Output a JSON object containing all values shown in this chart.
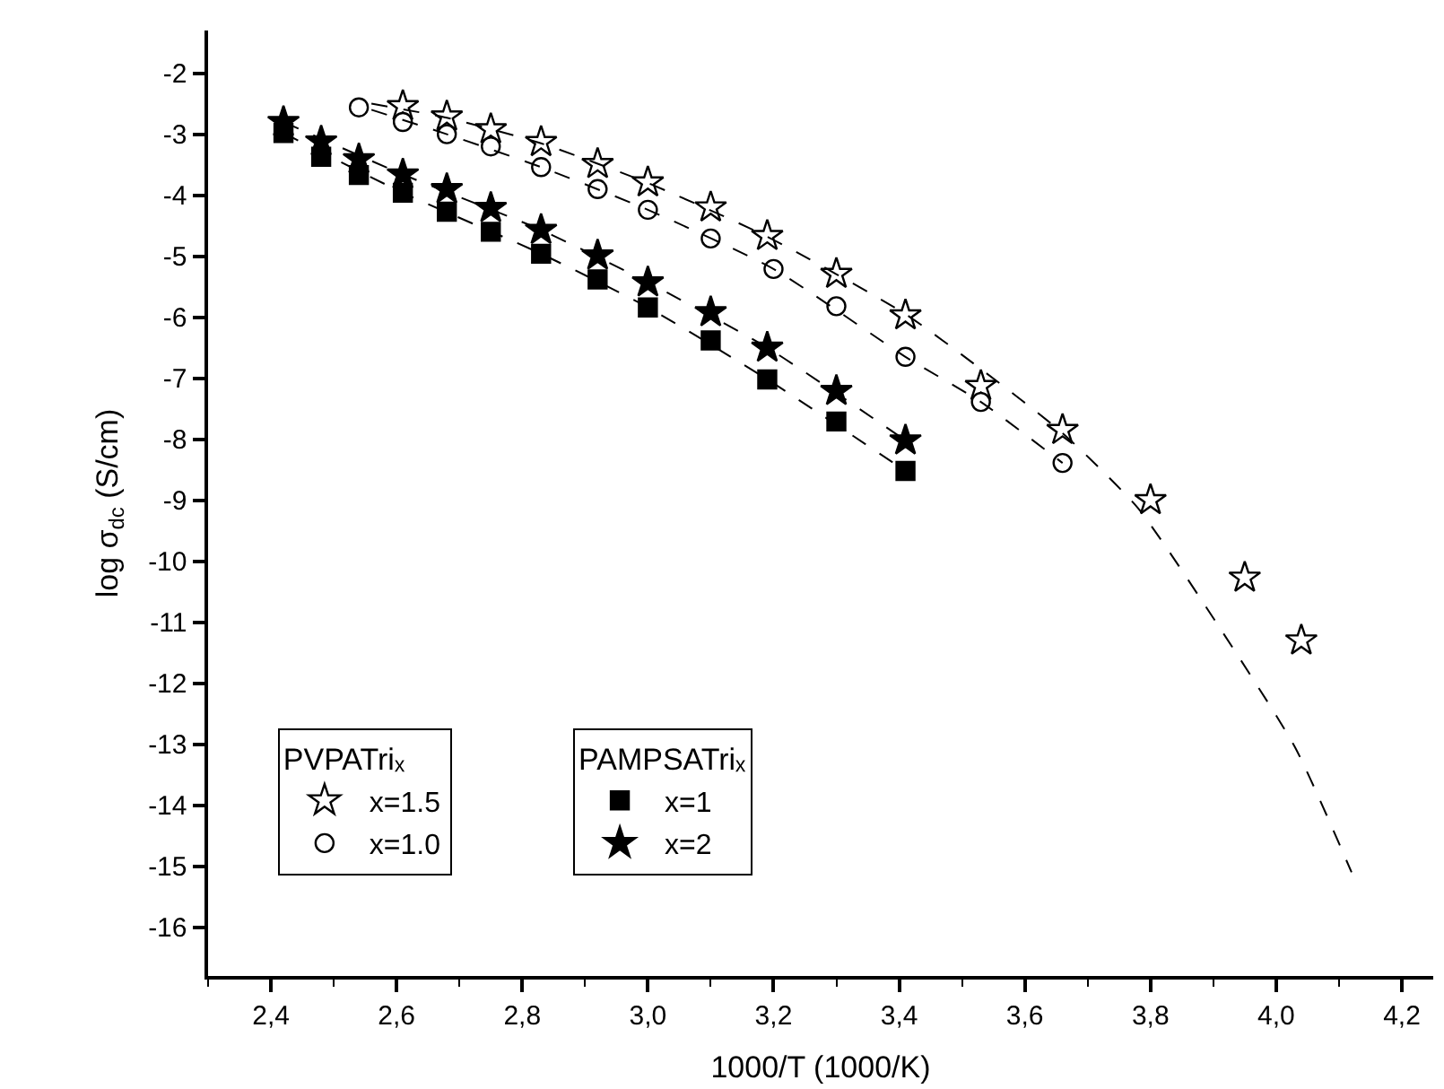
{
  "chart_data": {
    "type": "scatter",
    "xlabel": "1000/T (1000/K)",
    "ylabel": "log σ$_{dc}$ (S/cm)",
    "legend_title": [
      "PVPATriₓ",
      "PAMPSATriₓ"
    ],
    "xlim": [
      2.3,
      4.25
    ],
    "ylim": [
      -16.8,
      -1.3
    ],
    "xticks": [
      {
        "value": 2.4,
        "label": "2,4"
      },
      {
        "value": 2.6,
        "label": "2,6"
      },
      {
        "value": 2.8,
        "label": "2,8"
      },
      {
        "value": 3.0,
        "label": "3,0"
      },
      {
        "value": 3.2,
        "label": "3,2"
      },
      {
        "value": 3.4,
        "label": "3,4"
      },
      {
        "value": 3.6,
        "label": "3,6"
      },
      {
        "value": 3.8,
        "label": "3,8"
      },
      {
        "value": 4.0,
        "label": "4,0"
      },
      {
        "value": 4.2,
        "label": "4,2"
      }
    ],
    "yticks": [
      -2,
      -3,
      -4,
      -5,
      -6,
      -7,
      -8,
      -9,
      -10,
      -11,
      -12,
      -13,
      -14,
      -15,
      -16
    ],
    "legend": "bottom left",
    "series": [
      {
        "name": "x=1.5",
        "color": "#000000",
        "marker": "star",
        "x": [
          2.61,
          2.68,
          2.75,
          2.83,
          2.92,
          3.0,
          3.1,
          3.19,
          3.3,
          3.41,
          3.53,
          3.66,
          3.8,
          3.95,
          4.04
        ],
        "values": [
          -2.54,
          -2.71,
          -2.92,
          -3.13,
          -3.49,
          -3.79,
          -4.2,
          -4.67,
          -5.29,
          -5.97,
          -7.13,
          -7.85,
          -9.0,
          -10.27,
          -11.3
        ]
      },
      {
        "name": "x=1.0",
        "color": "#000000",
        "marker": "circle",
        "x": [
          2.54,
          2.61,
          2.68,
          2.75,
          2.83,
          2.92,
          3.0,
          3.1,
          3.2,
          3.3,
          3.41,
          3.53,
          3.66
        ],
        "values": [
          -2.56,
          -2.8,
          -3.0,
          -3.2,
          -3.54,
          -3.9,
          -4.24,
          -4.71,
          -5.21,
          -5.82,
          -6.65,
          -7.39,
          -8.39
        ]
      },
      {
        "name": "x=1",
        "color": "#000000",
        "marker": "square",
        "x": [
          2.42,
          2.48,
          2.54,
          2.61,
          2.68,
          2.75,
          2.83,
          2.92,
          3.0,
          3.1,
          3.19,
          3.3,
          3.41
        ],
        "values": [
          -2.98,
          -3.37,
          -3.67,
          -3.96,
          -4.27,
          -4.6,
          -4.96,
          -5.38,
          -5.84,
          -6.38,
          -7.02,
          -7.71,
          -8.52
        ]
      },
      {
        "name": "x=2",
        "color": "#000000",
        "marker": "star",
        "x": [
          2.42,
          2.48,
          2.54,
          2.61,
          2.68,
          2.75,
          2.83,
          2.92,
          3.0,
          3.1,
          3.19,
          3.3,
          3.41
        ],
        "values": [
          -2.8,
          -3.12,
          -3.41,
          -3.66,
          -3.9,
          -4.21,
          -4.57,
          -4.99,
          -5.43,
          -5.92,
          -6.5,
          -7.21,
          -8.02
        ]
      },
      {
        "type": "line",
        "color": "#000000",
        "marker": "none",
        "line_style": "dashed",
        "x": [
          2.56,
          2.68,
          2.83,
          3.0,
          3.19,
          3.41,
          3.53,
          3.66,
          3.78,
          3.91,
          4.03,
          4.12
        ],
        "values": [
          -2.5,
          -2.73,
          -3.15,
          -3.8,
          -4.68,
          -5.95,
          -6.85,
          -7.9,
          -9.13,
          -11.09,
          -13.05,
          -15.1
        ]
      },
      {
        "type": "line",
        "color": "#000000",
        "marker": "none",
        "line_style": "dashed",
        "x": [
          2.56,
          2.68,
          2.83,
          3.0,
          3.2,
          3.41,
          3.53,
          3.66
        ],
        "values": [
          -2.6,
          -3.0,
          -3.54,
          -4.24,
          -5.21,
          -6.65,
          -7.39,
          -8.39
        ]
      },
      {
        "type": "line",
        "color": "#000000",
        "marker": "none",
        "line_style": "dashed",
        "x": [
          2.42,
          2.61,
          2.83,
          3.0,
          3.19,
          3.41
        ],
        "values": [
          -2.98,
          -3.96,
          -4.96,
          -5.84,
          -7.02,
          -8.52
        ]
      },
      {
        "type": "line",
        "color": "#000000",
        "marker": "none",
        "line_style": "dashed",
        "x": [
          2.42,
          2.61,
          2.83,
          3.0,
          3.19,
          3.41
        ],
        "values": [
          -2.8,
          -3.66,
          -4.57,
          -5.43,
          -6.5,
          -8.02
        ]
      }
    ]
  }
}
